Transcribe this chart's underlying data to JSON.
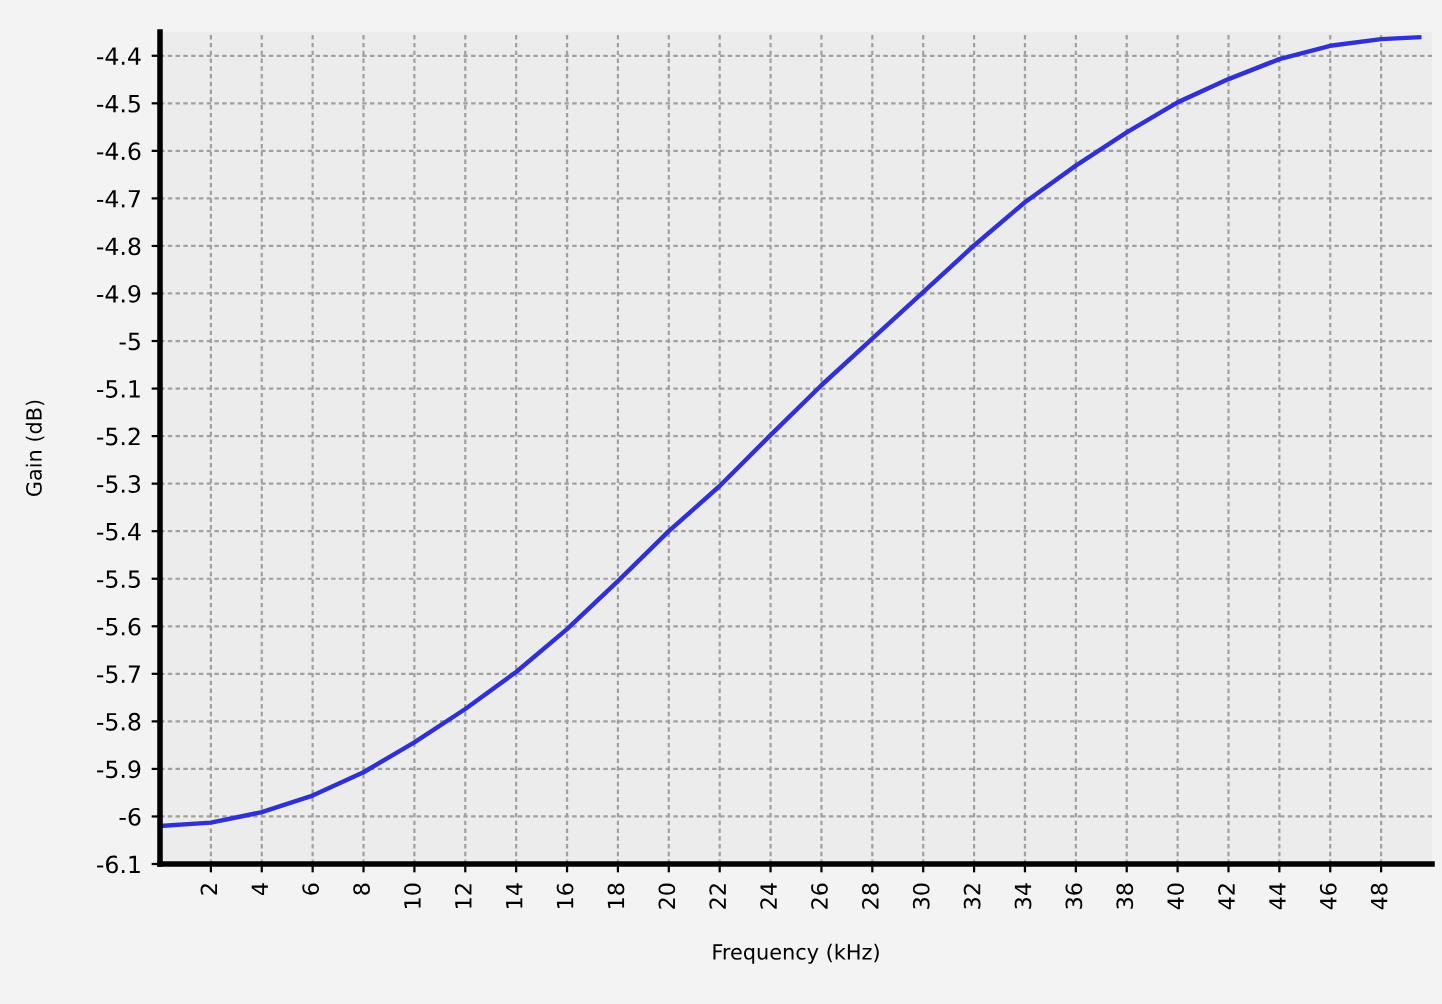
{
  "chart_data": {
    "type": "line",
    "xlabel": "Frequency (kHz)",
    "ylabel": "Gain (dB)",
    "x": [
      0,
      2,
      4,
      6,
      8,
      10,
      12,
      14,
      16,
      18,
      20,
      22,
      24,
      26,
      28,
      30,
      32,
      34,
      36,
      38,
      40,
      42,
      44,
      46,
      48,
      49.5
    ],
    "series": [
      {
        "color": "#3030d8",
        "values": [
          -6.02,
          -6.013,
          -5.991,
          -5.956,
          -5.907,
          -5.844,
          -5.774,
          -5.696,
          -5.606,
          -5.505,
          -5.4,
          -5.305,
          -5.198,
          -5.093,
          -4.995,
          -4.897,
          -4.799,
          -4.708,
          -4.631,
          -4.561,
          -4.498,
          -4.449,
          -4.407,
          -4.379,
          -4.365,
          -4.361
        ]
      }
    ],
    "xlim": [
      0,
      50
    ],
    "ylim": [
      -6.1,
      -4.35
    ],
    "xticks": [
      2,
      4,
      6,
      8,
      10,
      12,
      14,
      16,
      18,
      20,
      22,
      24,
      26,
      28,
      30,
      32,
      34,
      36,
      38,
      40,
      42,
      44,
      46,
      48
    ],
    "yticks": [
      -6.1,
      -6,
      -5.9,
      -5.8,
      -5.7,
      -5.6,
      -5.5,
      -5.4,
      -5.3,
      -5.2,
      -5.1,
      -5,
      -4.9,
      -4.8,
      -4.7,
      -4.6,
      -4.5,
      -4.4
    ],
    "grid": true,
    "legend": false,
    "marker": "none",
    "line_style": "solid"
  }
}
